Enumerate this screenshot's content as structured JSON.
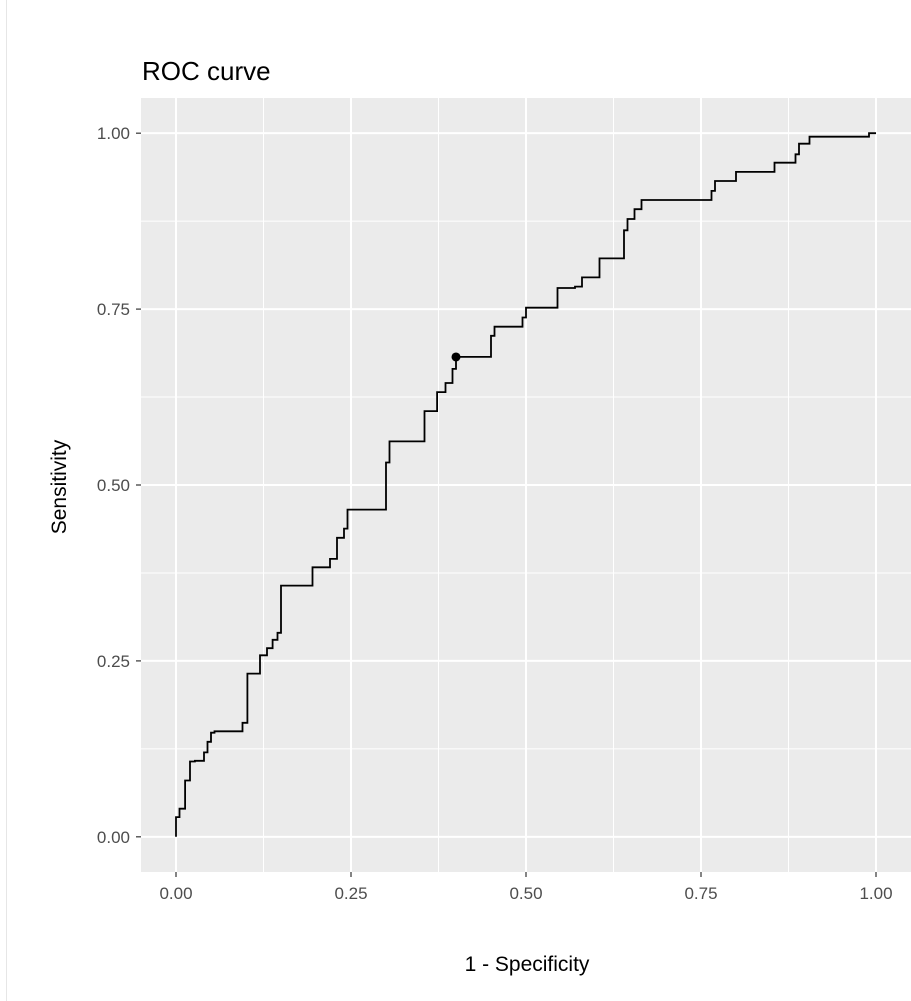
{
  "chart_data": {
    "type": "line",
    "title": "ROC curve",
    "xlabel": "1 - Specificity",
    "ylabel": "Sensitivity",
    "xlim": [
      -0.05,
      1.05
    ],
    "ylim": [
      -0.05,
      1.05
    ],
    "x_ticks": [
      0.0,
      0.25,
      0.5,
      0.75,
      1.0
    ],
    "x_tick_labels": [
      "0.00",
      "0.25",
      "0.50",
      "0.75",
      "1.00"
    ],
    "y_ticks": [
      0.0,
      0.25,
      0.5,
      0.75,
      1.0
    ],
    "y_tick_labels": [
      "0.00",
      "0.25",
      "0.50",
      "0.75",
      "1.00"
    ],
    "grid": true,
    "legend": "none",
    "colors": {
      "panel": "#ebebeb",
      "grid": "#ffffff",
      "line": "#000000",
      "tick_text": "#4d4d4d",
      "tick_mark": "#333333"
    },
    "series": [
      {
        "name": "",
        "x": [
          0.0,
          0.0,
          0.005,
          0.005,
          0.013,
          0.013,
          0.02,
          0.02,
          0.027,
          0.027,
          0.04,
          0.04,
          0.045,
          0.045,
          0.05,
          0.05,
          0.055,
          0.055,
          0.095,
          0.095,
          0.102,
          0.102,
          0.12,
          0.12,
          0.13,
          0.13,
          0.138,
          0.138,
          0.145,
          0.145,
          0.15,
          0.15,
          0.195,
          0.195,
          0.22,
          0.22,
          0.23,
          0.23,
          0.24,
          0.24,
          0.245,
          0.245,
          0.3,
          0.3,
          0.305,
          0.305,
          0.355,
          0.355,
          0.373,
          0.373,
          0.385,
          0.385,
          0.395,
          0.395,
          0.4,
          0.4,
          0.45,
          0.45,
          0.455,
          0.455,
          0.495,
          0.495,
          0.5,
          0.5,
          0.545,
          0.545,
          0.57,
          0.57,
          0.58,
          0.58,
          0.605,
          0.605,
          0.64,
          0.64,
          0.645,
          0.645,
          0.655,
          0.655,
          0.665,
          0.665,
          0.765,
          0.765,
          0.77,
          0.77,
          0.8,
          0.8,
          0.855,
          0.855,
          0.885,
          0.885,
          0.89,
          0.89,
          0.905,
          0.905,
          0.99,
          0.99,
          1.0
        ],
        "y": [
          0.0,
          0.028,
          0.028,
          0.04,
          0.04,
          0.08,
          0.08,
          0.107,
          0.107,
          0.108,
          0.108,
          0.12,
          0.12,
          0.135,
          0.135,
          0.148,
          0.148,
          0.15,
          0.15,
          0.162,
          0.162,
          0.232,
          0.232,
          0.258,
          0.258,
          0.268,
          0.268,
          0.28,
          0.28,
          0.29,
          0.29,
          0.357,
          0.357,
          0.383,
          0.383,
          0.395,
          0.395,
          0.425,
          0.425,
          0.438,
          0.438,
          0.465,
          0.465,
          0.532,
          0.532,
          0.562,
          0.562,
          0.605,
          0.605,
          0.632,
          0.632,
          0.645,
          0.645,
          0.665,
          0.665,
          0.682,
          0.682,
          0.712,
          0.712,
          0.725,
          0.725,
          0.738,
          0.738,
          0.752,
          0.752,
          0.78,
          0.78,
          0.782,
          0.782,
          0.795,
          0.795,
          0.822,
          0.822,
          0.862,
          0.862,
          0.878,
          0.878,
          0.892,
          0.892,
          0.905,
          0.905,
          0.918,
          0.918,
          0.932,
          0.932,
          0.945,
          0.945,
          0.958,
          0.958,
          0.97,
          0.97,
          0.985,
          0.985,
          0.995,
          0.995,
          1.0,
          1.0
        ]
      }
    ],
    "highlight_point": {
      "x": 0.4,
      "y": 0.682
    }
  }
}
